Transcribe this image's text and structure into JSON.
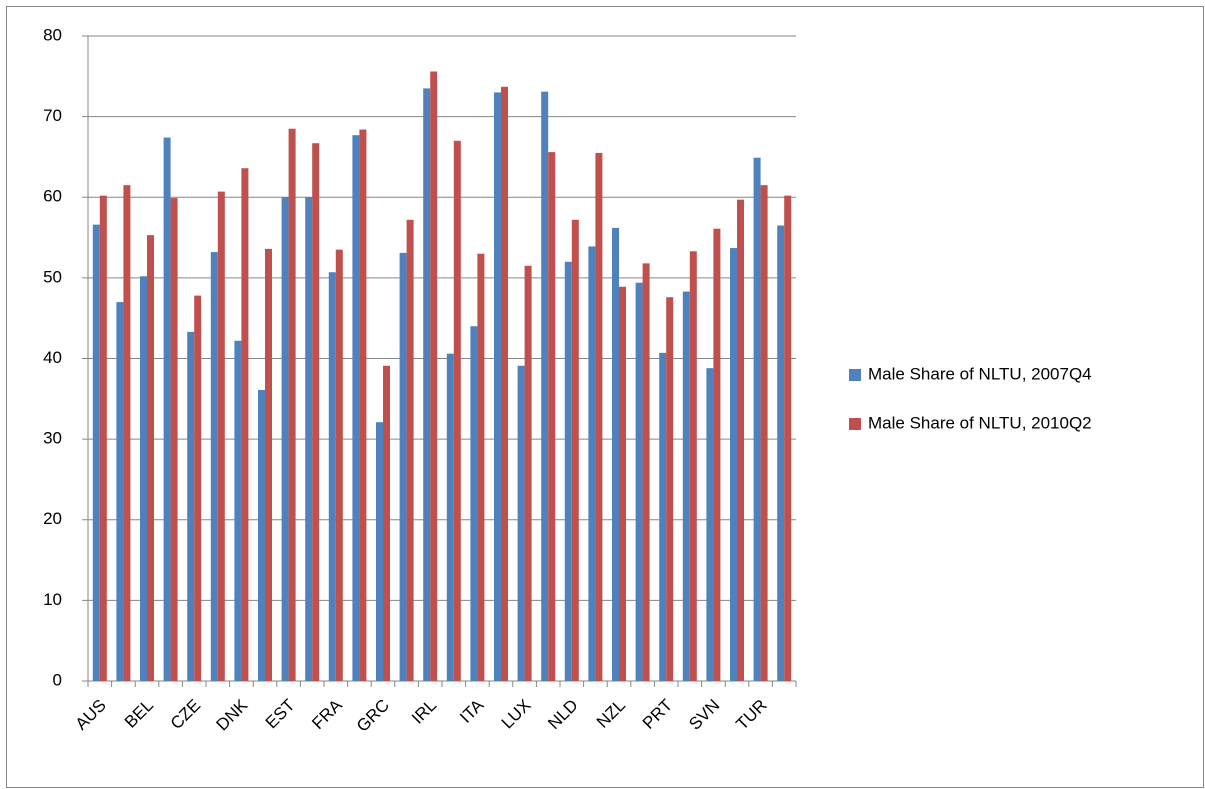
{
  "chart_data": {
    "type": "bar",
    "categories": [
      "AUS",
      null,
      "BEL",
      null,
      "CZE",
      null,
      "DNK",
      null,
      "EST",
      null,
      "FRA",
      null,
      "GRC",
      null,
      "IRL",
      null,
      "ITA",
      null,
      "LUX",
      null,
      "NLD",
      null,
      "NZL",
      null,
      "PRT",
      null,
      "SVN",
      null,
      "TUR",
      null
    ],
    "series": [
      {
        "name": "Male Share of NLTU, 2007Q4",
        "color": "#4f81bd",
        "values": [
          56.6,
          47.0,
          50.2,
          67.4,
          43.3,
          53.2,
          42.2,
          36.1,
          60.0,
          60.0,
          50.7,
          67.7,
          32.1,
          53.1,
          73.5,
          40.6,
          44.0,
          73.0,
          39.1,
          73.1,
          52.0,
          53.9,
          56.2,
          49.4,
          40.7,
          48.3,
          38.8,
          53.7,
          64.9,
          56.5
        ]
      },
      {
        "name": "Male Share of NLTU, 2010Q2",
        "color": "#c0504d",
        "values": [
          60.2,
          61.5,
          55.3,
          59.9,
          47.8,
          60.7,
          63.6,
          53.6,
          68.5,
          66.7,
          53.5,
          68.4,
          39.1,
          57.2,
          75.6,
          67.0,
          53.0,
          73.7,
          51.5,
          65.6,
          57.2,
          65.5,
          48.9,
          51.8,
          47.6,
          53.3,
          56.1,
          59.7,
          61.5,
          60.2
        ]
      }
    ],
    "ylim": [
      0,
      80
    ],
    "yticks": [
      0,
      10,
      20,
      30,
      40,
      50,
      60,
      70,
      80
    ],
    "grid": true,
    "legend": "right"
  }
}
